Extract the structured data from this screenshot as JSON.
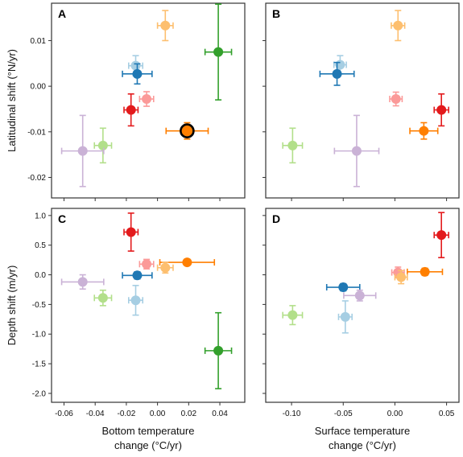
{
  "chart_data": [
    {
      "id": "A",
      "type": "scatter",
      "panel_label": "A",
      "xlabel": "",
      "ylabel": "Latitudinal shift (°N/yr)",
      "xlim": [
        -0.068,
        0.056
      ],
      "ylim": [
        -0.0245,
        0.0182
      ],
      "xticks": [
        -0.06,
        -0.04,
        -0.02,
        0.0,
        0.02,
        0.04
      ],
      "xticklabels": [],
      "yticks": [
        -0.02,
        -0.01,
        0.0,
        0.01
      ],
      "yticklabels": [
        "-0.02",
        "-0.01",
        "0.00",
        "0.01"
      ],
      "points": [
        {
          "color": "#fdbf6f",
          "x": 0.005,
          "y": 0.0133,
          "xerr": 0.005,
          "yerr": 0.0033
        },
        {
          "color": "#33a02c",
          "x": 0.039,
          "y": 0.0075,
          "xerr": 0.0085,
          "yerr": 0.0105
        },
        {
          "color": "#a6cee3",
          "x": -0.014,
          "y": 0.0045,
          "xerr": 0.0045,
          "yerr": 0.0022
        },
        {
          "color": "#1f78b4",
          "x": -0.013,
          "y": 0.0027,
          "xerr": 0.0095,
          "yerr": 0.0022
        },
        {
          "color": "#fb9a99",
          "x": -0.007,
          "y": -0.0028,
          "xerr": 0.0045,
          "yerr": 0.0016
        },
        {
          "color": "#e31a1c",
          "x": -0.017,
          "y": -0.0052,
          "xerr": 0.0045,
          "yerr": 0.0035
        },
        {
          "color": "#ff7f00",
          "x": 0.019,
          "y": -0.0098,
          "xerr": 0.0135,
          "yerr": 0.0018,
          "highlight": true
        },
        {
          "color": "#b2df8a",
          "x": -0.035,
          "y": -0.013,
          "xerr": 0.0055,
          "yerr": 0.0038
        },
        {
          "color": "#cab2d6",
          "x": -0.048,
          "y": -0.0142,
          "xerr": 0.0135,
          "yerr": 0.0078
        }
      ]
    },
    {
      "id": "B",
      "type": "scatter",
      "panel_label": "B",
      "xlabel": "",
      "ylabel": "",
      "xlim": [
        -0.125,
        0.062
      ],
      "ylim": [
        -0.0245,
        0.0182
      ],
      "xticks": [
        -0.1,
        -0.05,
        0.0,
        0.05
      ],
      "xticklabels": [],
      "yticks": [
        -0.02,
        -0.01,
        0.0,
        0.01
      ],
      "yticklabels": [],
      "points": [
        {
          "color": "#fdbf6f",
          "x": 0.003,
          "y": 0.0133,
          "xerr": 0.0065,
          "yerr": 0.0033
        },
        {
          "color": "#a6cee3",
          "x": -0.053,
          "y": 0.0047,
          "xerr": 0.006,
          "yerr": 0.002
        },
        {
          "color": "#1f78b4",
          "x": -0.056,
          "y": 0.0027,
          "xerr": 0.0165,
          "yerr": 0.0025
        },
        {
          "color": "#fb9a99",
          "x": 0.001,
          "y": -0.0028,
          "xerr": 0.006,
          "yerr": 0.0015
        },
        {
          "color": "#e31a1c",
          "x": 0.045,
          "y": -0.0052,
          "xerr": 0.007,
          "yerr": 0.0035
        },
        {
          "color": "#ff7f00",
          "x": 0.028,
          "y": -0.0098,
          "xerr": 0.0135,
          "yerr": 0.0018
        },
        {
          "color": "#b2df8a",
          "x": -0.099,
          "y": -0.013,
          "xerr": 0.0095,
          "yerr": 0.0038
        },
        {
          "color": "#cab2d6",
          "x": -0.037,
          "y": -0.0142,
          "xerr": 0.0215,
          "yerr": 0.0078
        }
      ]
    },
    {
      "id": "C",
      "type": "scatter",
      "panel_label": "C",
      "xlabel": "Bottom temperature change (°C/yr)",
      "xlabel_lines": [
        "Bottom temperature",
        "change (°C/yr)"
      ],
      "ylabel": "Depth shift (m/yr)",
      "xlim": [
        -0.068,
        0.056
      ],
      "ylim": [
        -2.15,
        1.12
      ],
      "xticks": [
        -0.06,
        -0.04,
        -0.02,
        0.0,
        0.02,
        0.04
      ],
      "xticklabels": [
        "-0.06",
        "-0.04",
        "-0.02",
        "0.00",
        "0.02",
        "0.04"
      ],
      "yticks": [
        -2.0,
        -1.5,
        -1.0,
        -0.5,
        0.0,
        0.5,
        1.0
      ],
      "yticklabels": [
        "-2.0",
        "-1.5",
        "-1.0",
        "-0.5",
        "0.0",
        "0.5",
        "1.0"
      ],
      "points": [
        {
          "color": "#e31a1c",
          "x": -0.017,
          "y": 0.72,
          "xerr": 0.0045,
          "yerr": 0.32
        },
        {
          "color": "#fb9a99",
          "x": -0.007,
          "y": 0.18,
          "xerr": 0.0045,
          "yerr": 0.08
        },
        {
          "color": "#ff7f00",
          "x": 0.019,
          "y": 0.21,
          "xerr": 0.0175,
          "yerr": 0.05
        },
        {
          "color": "#fdbf6f",
          "x": 0.005,
          "y": 0.12,
          "xerr": 0.005,
          "yerr": 0.09
        },
        {
          "color": "#1f78b4",
          "x": -0.013,
          "y": -0.01,
          "xerr": 0.0095,
          "yerr": 0.06
        },
        {
          "color": "#cab2d6",
          "x": -0.048,
          "y": -0.12,
          "xerr": 0.0135,
          "yerr": 0.12
        },
        {
          "color": "#b2df8a",
          "x": -0.035,
          "y": -0.39,
          "xerr": 0.0055,
          "yerr": 0.13
        },
        {
          "color": "#a6cee3",
          "x": -0.014,
          "y": -0.43,
          "xerr": 0.0045,
          "yerr": 0.25
        },
        {
          "color": "#33a02c",
          "x": 0.039,
          "y": -1.28,
          "xerr": 0.0085,
          "yerr": 0.64
        }
      ]
    },
    {
      "id": "D",
      "type": "scatter",
      "panel_label": "D",
      "xlabel": "Surface temperature change (°C/yr)",
      "xlabel_lines": [
        "Surface temperature",
        "change (°C/yr)"
      ],
      "ylabel": "",
      "xlim": [
        -0.125,
        0.062
      ],
      "ylim": [
        -2.15,
        1.12
      ],
      "xticks": [
        -0.1,
        -0.05,
        0.0,
        0.05
      ],
      "xticklabels": [
        "-0.10",
        "-0.05",
        "0.00",
        "0.05"
      ],
      "yticks": [
        -2.0,
        -1.5,
        -1.0,
        -0.5,
        0.0,
        0.5,
        1.0
      ],
      "yticklabels": [],
      "points": [
        {
          "color": "#e31a1c",
          "x": 0.045,
          "y": 0.67,
          "xerr": 0.007,
          "yerr": 0.38
        },
        {
          "color": "#fb9a99",
          "x": 0.003,
          "y": 0.04,
          "xerr": 0.006,
          "yerr": 0.09
        },
        {
          "color": "#ff7f00",
          "x": 0.029,
          "y": 0.05,
          "xerr": 0.017,
          "yerr": 0.06
        },
        {
          "color": "#fdbf6f",
          "x": 0.006,
          "y": -0.04,
          "xerr": 0.006,
          "yerr": 0.11
        },
        {
          "color": "#1f78b4",
          "x": -0.05,
          "y": -0.21,
          "xerr": 0.016,
          "yerr": 0.06
        },
        {
          "color": "#cab2d6",
          "x": -0.034,
          "y": -0.35,
          "xerr": 0.0155,
          "yerr": 0.09
        },
        {
          "color": "#b2df8a",
          "x": -0.099,
          "y": -0.68,
          "xerr": 0.0095,
          "yerr": 0.16
        },
        {
          "color": "#a6cee3",
          "x": -0.048,
          "y": -0.71,
          "xerr": 0.0065,
          "yerr": 0.27
        }
      ]
    }
  ]
}
